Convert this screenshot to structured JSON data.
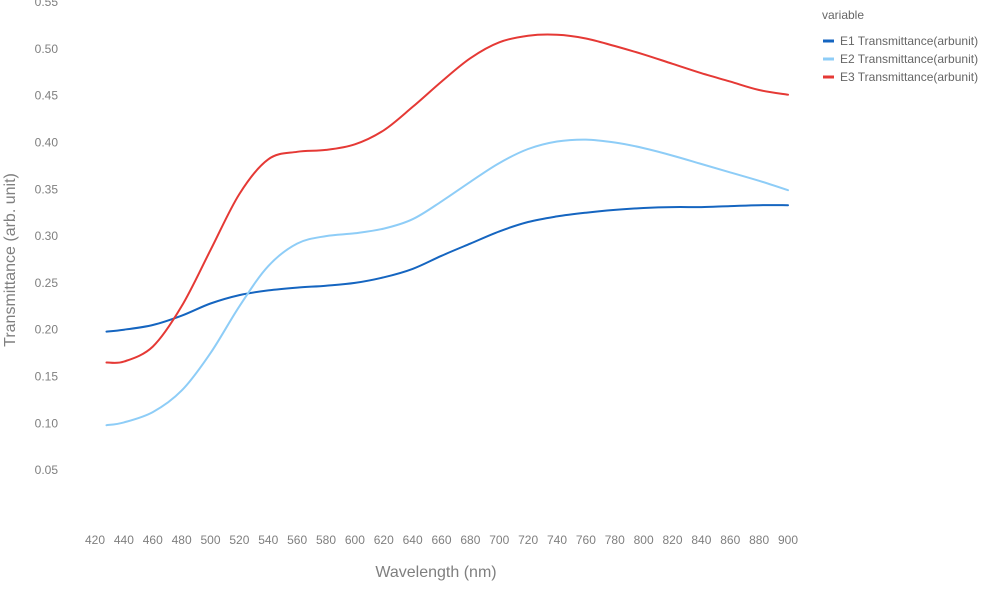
{
  "chart_data": {
    "type": "line",
    "title": "",
    "xlabel": "Wavelength (nm)",
    "ylabel": "Transmittance (arb. unit)",
    "xlim": [
      420,
      900
    ],
    "ylim": [
      0.0,
      0.55
    ],
    "x_ticks": [
      420,
      440,
      460,
      480,
      500,
      520,
      540,
      560,
      580,
      600,
      620,
      640,
      660,
      680,
      700,
      720,
      740,
      760,
      780,
      800,
      820,
      840,
      860,
      880,
      900
    ],
    "y_ticks": [
      0.05,
      0.1,
      0.15,
      0.2,
      0.25,
      0.3,
      0.35,
      0.4,
      0.45,
      0.5,
      0.55
    ],
    "grid": false,
    "legend": {
      "title": "variable",
      "position": "top-right"
    },
    "x": [
      428,
      440,
      460,
      480,
      500,
      520,
      540,
      560,
      580,
      600,
      620,
      640,
      660,
      680,
      700,
      720,
      740,
      760,
      780,
      800,
      820,
      840,
      860,
      880,
      900
    ],
    "series": [
      {
        "name": "E1 Transmittance(arbunit)",
        "color": "#1565c0",
        "values": [
          0.198,
          0.2,
          0.205,
          0.215,
          0.228,
          0.237,
          0.242,
          0.245,
          0.247,
          0.25,
          0.256,
          0.265,
          0.279,
          0.292,
          0.305,
          0.315,
          0.321,
          0.325,
          0.328,
          0.33,
          0.331,
          0.331,
          0.332,
          0.333,
          0.333
        ]
      },
      {
        "name": "E2 Transmittance(arbunit)",
        "color": "#8ecdf7",
        "values": [
          0.098,
          0.101,
          0.112,
          0.135,
          0.175,
          0.225,
          0.268,
          0.292,
          0.3,
          0.303,
          0.308,
          0.318,
          0.337,
          0.358,
          0.378,
          0.393,
          0.401,
          0.403,
          0.4,
          0.394,
          0.386,
          0.377,
          0.368,
          0.359,
          0.349
        ]
      },
      {
        "name": "E3 Transmittance(arbunit)",
        "color": "#e53935",
        "values": [
          0.165,
          0.166,
          0.182,
          0.225,
          0.285,
          0.345,
          0.382,
          0.39,
          0.392,
          0.398,
          0.413,
          0.438,
          0.465,
          0.49,
          0.507,
          0.514,
          0.515,
          0.511,
          0.503,
          0.494,
          0.484,
          0.474,
          0.465,
          0.456,
          0.451
        ]
      }
    ]
  }
}
